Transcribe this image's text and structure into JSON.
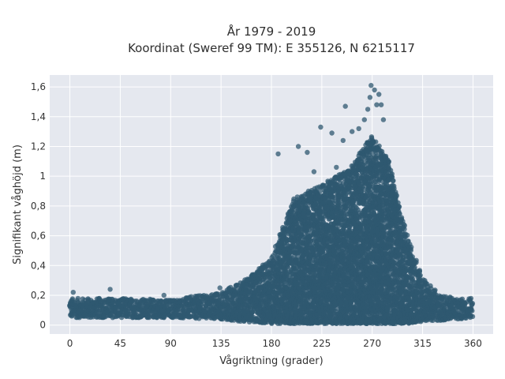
{
  "chart_data": {
    "type": "scatter",
    "title_line1": "År 1979 - 2019",
    "title_line2": "Koordinat (Sweref 99 TM): E 355126, N 6215117",
    "xlabel": "Vågriktning (grader)",
    "ylabel": "Signifikant våghöjd (m)",
    "xlim": [
      -18,
      378
    ],
    "ylim": [
      -0.06,
      1.68
    ],
    "x_ticks": [
      {
        "value": 0,
        "label": "0"
      },
      {
        "value": 45,
        "label": "45"
      },
      {
        "value": 90,
        "label": "90"
      },
      {
        "value": 135,
        "label": "135"
      },
      {
        "value": 180,
        "label": "180"
      },
      {
        "value": 225,
        "label": "225"
      },
      {
        "value": 270,
        "label": "270"
      },
      {
        "value": 315,
        "label": "315"
      },
      {
        "value": 360,
        "label": "360"
      }
    ],
    "y_ticks": [
      {
        "value": 0,
        "label": "0"
      },
      {
        "value": 0.2,
        "label": "0,2"
      },
      {
        "value": 0.4,
        "label": "0,4"
      },
      {
        "value": 0.6,
        "label": "0,6"
      },
      {
        "value": 0.8,
        "label": "0,8"
      },
      {
        "value": 1.0,
        "label": "1"
      },
      {
        "value": 1.2,
        "label": "1,2"
      },
      {
        "value": 1.4,
        "label": "1,4"
      },
      {
        "value": 1.6,
        "label": "1,6"
      }
    ],
    "grid": true,
    "colors": {
      "points": "#2f5870",
      "plot_bg": "#e5e8ef",
      "grid": "#ffffff"
    },
    "envelope": {
      "direction": [
        0,
        45,
        90,
        135,
        160,
        180,
        200,
        225,
        250,
        270,
        285,
        300,
        315,
        330,
        345,
        360
      ],
      "min_height": [
        0.05,
        0.05,
        0.05,
        0.04,
        0.02,
        0.01,
        0.01,
        0.01,
        0.01,
        0.01,
        0.01,
        0.01,
        0.02,
        0.03,
        0.04,
        0.05
      ],
      "max_height": [
        0.18,
        0.18,
        0.17,
        0.22,
        0.32,
        0.45,
        0.85,
        0.95,
        1.05,
        1.28,
        1.1,
        0.62,
        0.32,
        0.2,
        0.18,
        0.18
      ]
    },
    "outliers": [
      {
        "x": 3,
        "y": 0.22
      },
      {
        "x": 36,
        "y": 0.24
      },
      {
        "x": 84,
        "y": 0.2
      },
      {
        "x": 134,
        "y": 0.25
      },
      {
        "x": 186,
        "y": 1.15
      },
      {
        "x": 204,
        "y": 1.2
      },
      {
        "x": 224,
        "y": 1.33
      },
      {
        "x": 234,
        "y": 1.29
      },
      {
        "x": 246,
        "y": 1.47
      },
      {
        "x": 252,
        "y": 1.3
      },
      {
        "x": 258,
        "y": 1.32
      },
      {
        "x": 263,
        "y": 1.38
      },
      {
        "x": 266,
        "y": 1.45
      },
      {
        "x": 268,
        "y": 1.53
      },
      {
        "x": 269,
        "y": 1.61
      },
      {
        "x": 272,
        "y": 1.58
      },
      {
        "x": 274,
        "y": 1.48
      },
      {
        "x": 276,
        "y": 1.55
      },
      {
        "x": 278,
        "y": 1.48
      },
      {
        "x": 280,
        "y": 1.38
      },
      {
        "x": 238,
        "y": 1.06
      },
      {
        "x": 244,
        "y": 1.24
      },
      {
        "x": 212,
        "y": 1.16
      },
      {
        "x": 218,
        "y": 1.03
      }
    ]
  }
}
